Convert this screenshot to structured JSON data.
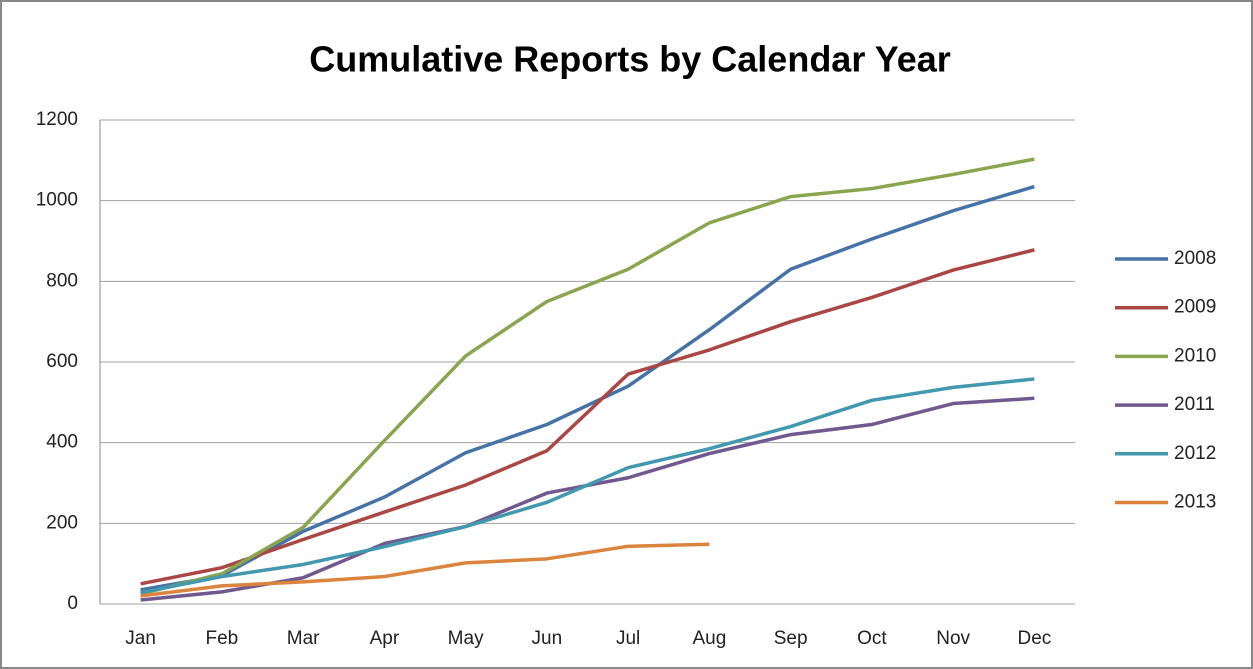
{
  "chart_data": {
    "type": "line",
    "title": "Cumulative Reports by Calendar Year",
    "categories": [
      "Jan",
      "Feb",
      "Mar",
      "Apr",
      "May",
      "Jun",
      "Jul",
      "Aug",
      "Sep",
      "Oct",
      "Nov",
      "Dec"
    ],
    "series": [
      {
        "name": "2008",
        "color": "#4572a7",
        "values": [
          35,
          70,
          180,
          265,
          375,
          445,
          540,
          680,
          830,
          905,
          975,
          1035
        ]
      },
      {
        "name": "2009",
        "color": "#aa4643",
        "values": [
          50,
          90,
          160,
          228,
          295,
          380,
          570,
          630,
          700,
          760,
          828,
          878
        ]
      },
      {
        "name": "2010",
        "color": "#89a54e",
        "values": [
          25,
          75,
          190,
          405,
          615,
          750,
          830,
          945,
          1010,
          1030,
          1065,
          1103
        ]
      },
      {
        "name": "2011",
        "color": "#71588f",
        "values": [
          10,
          30,
          65,
          150,
          192,
          275,
          313,
          373,
          420,
          445,
          497,
          510
        ]
      },
      {
        "name": "2012",
        "color": "#4198af",
        "values": [
          28,
          68,
          98,
          142,
          192,
          252,
          338,
          385,
          440,
          505,
          537,
          558
        ]
      },
      {
        "name": "2013",
        "color": "#db843d",
        "values": [
          20,
          45,
          55,
          68,
          102,
          112,
          143,
          148,
          null,
          null,
          null,
          null
        ]
      }
    ],
    "ylim": [
      0,
      1200
    ],
    "yticks": [
      0,
      200,
      400,
      600,
      800,
      1000,
      1200
    ],
    "grid": true,
    "legend": "right"
  }
}
